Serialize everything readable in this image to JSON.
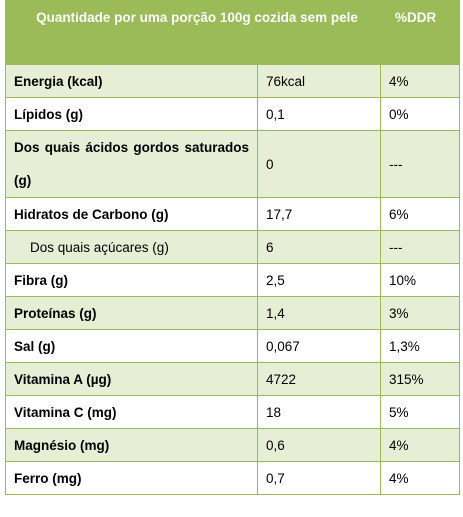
{
  "header": {
    "col1": "Quantidade por uma porção 100g cozida sem pele",
    "col2": "",
    "col3": "%DDR"
  },
  "rows": [
    {
      "name": "Energia (kcal)",
      "value": "76kcal",
      "ddr": "4%"
    },
    {
      "name": "Lípidos (g)",
      "value": "0,1",
      "ddr": "0%"
    },
    {
      "name": "Dos quais ácidos gordos saturados (g)",
      "value": "0",
      "ddr": "---"
    },
    {
      "name": "Hidratos de Carbono (g)",
      "value": "17,7",
      "ddr": "6%"
    },
    {
      "name": "Dos quais açúcares (g)",
      "value": "6",
      "ddr": "---"
    },
    {
      "name": "Fibra (g)",
      "value": "2,5",
      "ddr": "10%"
    },
    {
      "name": "Proteínas (g)",
      "value": "1,4",
      "ddr": "3%"
    },
    {
      "name": "Sal (g)",
      "value": "0,067",
      "ddr": "1,3%"
    },
    {
      "name": "Vitamina A (µg)",
      "value": "4722",
      "ddr": "315%"
    },
    {
      "name": "Vitamina C (mg)",
      "value": "18",
      "ddr": "5%"
    },
    {
      "name": "Magnésio (mg)",
      "value": "0,6",
      "ddr": "4%"
    },
    {
      "name": "Ferro (mg)",
      "value": "0,7",
      "ddr": "4%"
    }
  ]
}
